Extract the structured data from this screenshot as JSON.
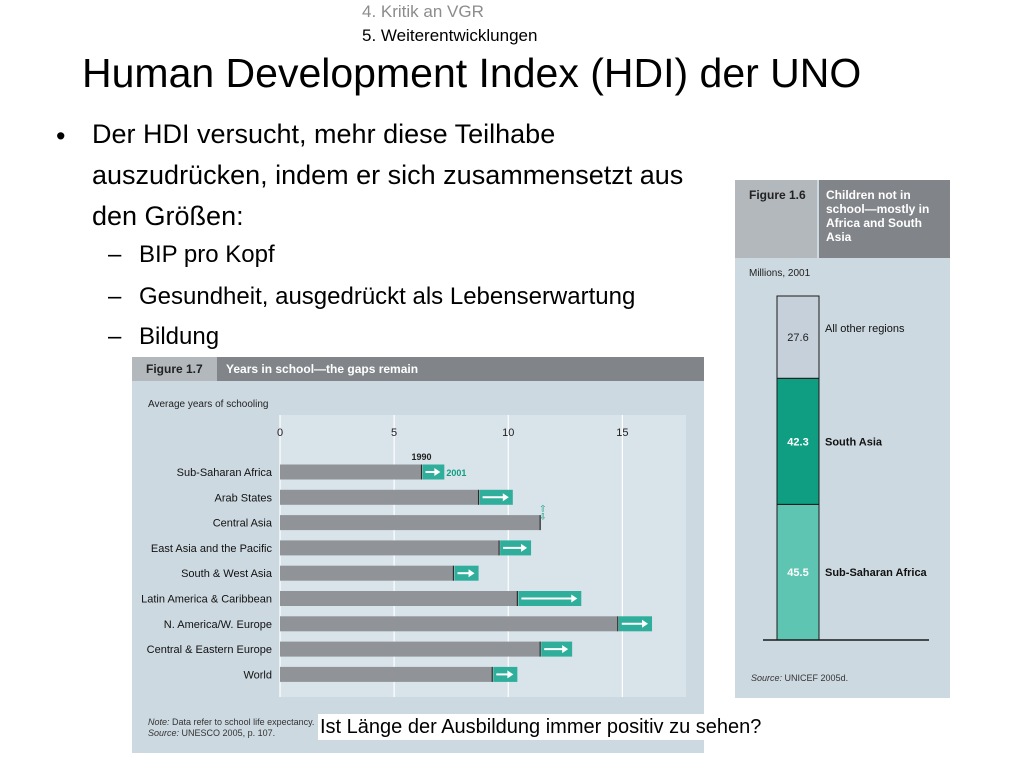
{
  "nav": {
    "item_4": "4. Kritik an VGR",
    "item_5": "5. Weiterentwicklungen"
  },
  "slide": {
    "title": "Human Development Index (HDI) der UNO",
    "bullet_marker": "•",
    "bullet": "Der HDI versucht, mehr diese Teilhabe auszudrücken, indem er sich zusammensetzt aus den Größen:",
    "sub_marker": "–",
    "subbullets": [
      "BIP pro Kopf",
      "Gesundheit, ausgedrückt als Lebenserwartung",
      "Bildung"
    ],
    "question": "Ist Länge der Ausbildung immer positiv zu sehen?"
  },
  "colors": {
    "figure_bg": "#cdd9e1",
    "header_dark": "#818589",
    "header_light": "#b3b8bc",
    "bar_1990": "#909498",
    "bar_gain": "#2fae9c",
    "other_regions": "#c5d0da",
    "south_asia": "#0f9e82",
    "sub_saharan": "#5ec5b2"
  },
  "chart_data": [
    {
      "type": "bar",
      "orientation": "horizontal",
      "figure_label": "Figure 1.7",
      "title": "Years in school—the gaps remain",
      "subtitle": "Average years of schooling",
      "xlim": [
        0,
        17
      ],
      "xticks": [
        0,
        5,
        10,
        15
      ],
      "grid": true,
      "categories": [
        "Sub-Saharan Africa",
        "Arab States",
        "Central Asia",
        "East Asia and the Pacific",
        "South & West Asia",
        "Latin America & Caribbean",
        "N. America/W. Europe",
        "Central & Eastern Europe",
        "World"
      ],
      "series": [
        {
          "name": "1990",
          "values": [
            6.2,
            8.7,
            11.4,
            9.6,
            7.6,
            10.4,
            14.8,
            11.4,
            9.3
          ]
        },
        {
          "name": "2001",
          "values": [
            7.2,
            10.2,
            11.4,
            11.0,
            8.7,
            13.2,
            16.3,
            12.8,
            10.4
          ]
        }
      ],
      "annotations": {
        "up_arrow": "⇧",
        "down_arrow": "⇩"
      },
      "note": "Data refer to school life expectancy.",
      "note_label": "Note:",
      "source": "UNESCO 2005, p. 107.",
      "source_label": "Source:"
    },
    {
      "type": "bar",
      "stacked": true,
      "figure_label": "Figure 1.6",
      "title": "Children not in school—mostly in Africa and South Asia",
      "ylabel": "Millions, 2001",
      "segments": [
        {
          "name": "Sub-Saharan Africa",
          "value": 45.5,
          "label": "45.5"
        },
        {
          "name": "South Asia",
          "value": 42.3,
          "label": "42.3"
        },
        {
          "name": "All other regions",
          "value": 27.6,
          "label": "27.6"
        }
      ],
      "source": "UNICEF 2005d.",
      "source_label": "Source:"
    }
  ]
}
